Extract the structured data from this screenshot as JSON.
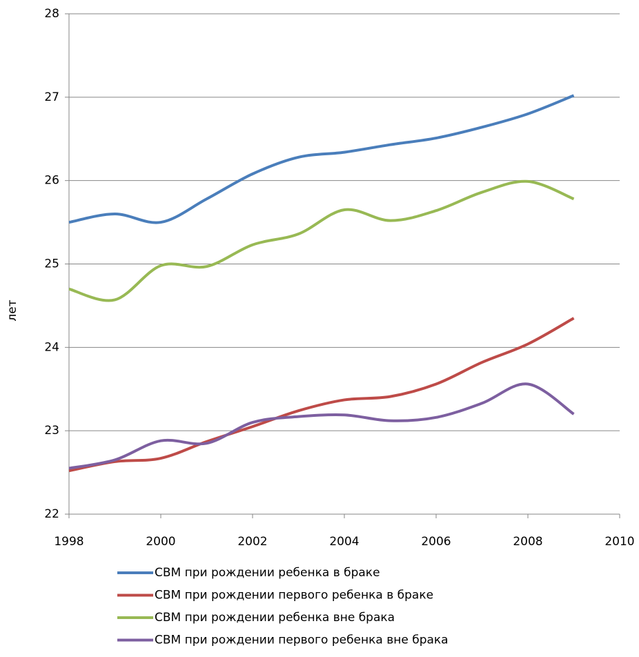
{
  "chart_data": {
    "type": "line",
    "y_label": "лет",
    "x": [
      1998,
      1999,
      2000,
      2001,
      2002,
      2003,
      2004,
      2005,
      2006,
      2007,
      2008,
      2009
    ],
    "series": [
      {
        "name": "СВМ при рождении ребенка в браке",
        "color": "#4a7ebb",
        "values": [
          25.5,
          25.6,
          25.5,
          25.78,
          26.08,
          26.28,
          26.34,
          26.43,
          26.51,
          26.64,
          26.8,
          27.02
        ]
      },
      {
        "name": "СВМ при рождении первого ребенка в браке",
        "color": "#be4b48",
        "values": [
          22.52,
          22.63,
          22.67,
          22.87,
          23.05,
          23.24,
          23.37,
          23.41,
          23.56,
          23.82,
          24.04,
          24.35
        ]
      },
      {
        "name": "СВМ при рождении ребенка вне брака",
        "color": "#98b954",
        "values": [
          24.7,
          24.57,
          24.98,
          24.97,
          25.23,
          25.36,
          25.65,
          25.52,
          25.64,
          25.86,
          25.99,
          25.78
        ]
      },
      {
        "name": "СВМ при рождении первого ребенка вне брака",
        "color": "#7d5fa0",
        "values": [
          22.55,
          22.65,
          22.88,
          22.85,
          23.1,
          23.17,
          23.19,
          23.12,
          23.16,
          23.33,
          23.56,
          23.2
        ]
      }
    ],
    "xlim": [
      1998,
      2010
    ],
    "xticks": [
      1998,
      2000,
      2002,
      2004,
      2006,
      2008,
      2010
    ],
    "ylim": [
      22,
      28
    ],
    "yticks": [
      22,
      23,
      24,
      25,
      26,
      27,
      28
    ],
    "grid": true
  }
}
